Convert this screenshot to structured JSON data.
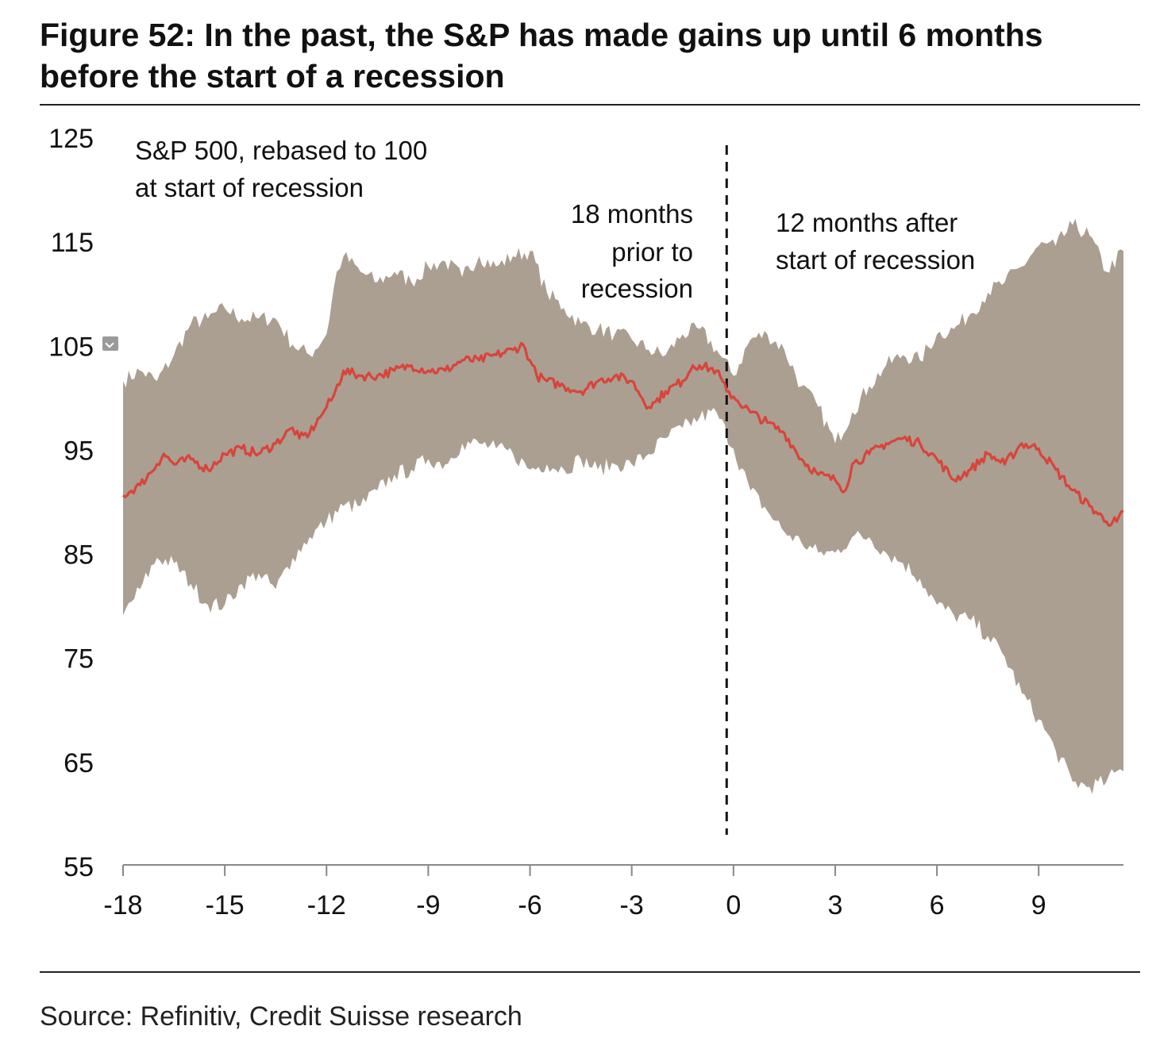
{
  "title": "Figure 52: In the past, the S&P has made gains up until 6 months before the start of a recession",
  "source": "Source: Refinitiv, Credit Suisse research",
  "colors": {
    "band": "#ab9f92",
    "median": "#d9443a",
    "axis": "#888888",
    "text": "#111111"
  },
  "chart_data": {
    "type": "area",
    "title": "",
    "xlabel": "",
    "ylabel": "",
    "xlim": [
      -18,
      11.5
    ],
    "ylim": [
      55,
      125
    ],
    "x_ticks": [
      -18,
      -15,
      -12,
      -9,
      -6,
      -3,
      0,
      3,
      6,
      9
    ],
    "x_tick_labels": [
      "-18",
      "-15",
      "-12",
      "-9",
      "-6",
      "-3",
      "0",
      "3",
      "6",
      "9"
    ],
    "y_ticks": [
      125,
      115,
      105,
      95,
      85,
      75,
      65,
      55
    ],
    "y_tick_labels": [
      "125",
      "115",
      "105",
      "95",
      "85",
      "75",
      "65",
      "55"
    ],
    "grid": false,
    "annotations": {
      "series_label": [
        "S&P 500, rebased to 100",
        "at start of recession"
      ],
      "before_label": [
        "18 months",
        "prior to",
        "recession"
      ],
      "after_label": [
        "12 months after",
        "start of recession"
      ]
    },
    "vline_x": -0.2,
    "median": {
      "x": [
        -18,
        -17.5,
        -17,
        -16.8,
        -16.5,
        -16,
        -15.5,
        -15,
        -14.5,
        -14,
        -13.5,
        -13,
        -12.8,
        -12.5,
        -12.2,
        -12,
        -11.8,
        -11.5,
        -11,
        -10.5,
        -10,
        -9.5,
        -9,
        -8.5,
        -8,
        -7.5,
        -7,
        -6.5,
        -6.2,
        -6,
        -5.8,
        -5.5,
        -5,
        -4.5,
        -4,
        -3.5,
        -3,
        -2.5,
        -2.3,
        -2,
        -1.5,
        -1.2,
        -1,
        -0.5,
        -0.2,
        0,
        0.5,
        1,
        1.5,
        2,
        2.5,
        3,
        3.3,
        3.5,
        4,
        4.5,
        5,
        5.5,
        6,
        6.5,
        7,
        7.5,
        8,
        8.5,
        9,
        9.5,
        10,
        10.5,
        11,
        11.3,
        11.5
      ],
      "values": [
        90.5,
        91.5,
        93.5,
        94.5,
        93.5,
        94,
        93,
        94.5,
        95,
        94.5,
        95.5,
        97,
        96,
        96.5,
        98,
        99,
        100,
        102.5,
        102,
        102,
        102.5,
        103,
        102.5,
        102.5,
        103.5,
        103.5,
        104,
        104.5,
        105,
        103.5,
        102,
        101.5,
        101,
        100.5,
        101.5,
        102,
        101.5,
        99,
        99.5,
        100.5,
        101.5,
        103,
        103,
        102.5,
        100.5,
        100,
        98.5,
        97.5,
        96.5,
        94,
        92.5,
        92,
        91,
        93.5,
        94.5,
        95.5,
        96,
        95.5,
        94,
        92,
        93,
        94.5,
        93.5,
        95.5,
        95,
        93,
        91,
        89.5,
        88,
        88,
        89
      ]
    },
    "band_upper": {
      "x": [
        -18,
        -17.5,
        -17,
        -16.5,
        -16,
        -15.5,
        -15,
        -14.5,
        -14,
        -13.5,
        -13,
        -12.5,
        -12,
        -11.7,
        -11.5,
        -11,
        -10.5,
        -10,
        -9.5,
        -9,
        -8.5,
        -8,
        -7.5,
        -7,
        -6.5,
        -6,
        -5.5,
        -5,
        -4.5,
        -4,
        -3.5,
        -3,
        -2.5,
        -2,
        -1.5,
        -1,
        -0.5,
        0,
        0.5,
        1,
        1.5,
        2,
        2.5,
        3,
        3.5,
        4,
        4.5,
        5,
        5.5,
        6,
        6.5,
        7,
        7.5,
        8,
        8.5,
        9,
        9.5,
        10,
        10.5,
        11,
        11.5
      ],
      "values": [
        101.5,
        102.5,
        101.5,
        104,
        107,
        107.5,
        108.5,
        107.5,
        107.5,
        107.5,
        105,
        104,
        106,
        112,
        113.5,
        112,
        111,
        112,
        111,
        112.5,
        113,
        111.5,
        113.5,
        112.5,
        113.5,
        114,
        110,
        108.5,
        107,
        106.5,
        106,
        105.5,
        104.5,
        104,
        106,
        106.5,
        104.5,
        102,
        105.5,
        106,
        104.5,
        101,
        99,
        95.5,
        98.5,
        101,
        103,
        104,
        103.5,
        106,
        106.5,
        108,
        110,
        111,
        112.5,
        114.5,
        114.5,
        116.5,
        115.5,
        112,
        114
      ]
    },
    "band_lower": {
      "x": [
        -18,
        -17.5,
        -17,
        -16.5,
        -16,
        -15.5,
        -15,
        -14.5,
        -14,
        -13.5,
        -13,
        -12.5,
        -12,
        -11.5,
        -11,
        -10.5,
        -10,
        -9.5,
        -9,
        -8.5,
        -8,
        -7.5,
        -7,
        -6.5,
        -6,
        -5.5,
        -5,
        -4.5,
        -4,
        -3.5,
        -3,
        -2.5,
        -2,
        -1.5,
        -1,
        -0.5,
        0,
        0.5,
        1,
        1.5,
        2,
        2.5,
        3,
        3.5,
        4,
        4.5,
        5,
        5.5,
        6,
        6.5,
        7,
        7.5,
        8,
        8.5,
        9,
        9.5,
        10,
        10.5,
        11,
        11.3,
        11.5
      ],
      "values": [
        79,
        81.5,
        84.5,
        84,
        82,
        80,
        80,
        82,
        83,
        81.5,
        84.5,
        86.5,
        88,
        89.5,
        89.5,
        91,
        92.5,
        93,
        94,
        93.5,
        95.5,
        95.5,
        95,
        94.5,
        93,
        93.5,
        93,
        94,
        93,
        93.5,
        93.5,
        94.5,
        96,
        97,
        98,
        98.5,
        95,
        91,
        89,
        87,
        86,
        85,
        85,
        86.5,
        86.5,
        85,
        84,
        82.5,
        80,
        79,
        78.5,
        77,
        75,
        71.5,
        69,
        66,
        63,
        62.5,
        63,
        64,
        64
      ]
    }
  }
}
